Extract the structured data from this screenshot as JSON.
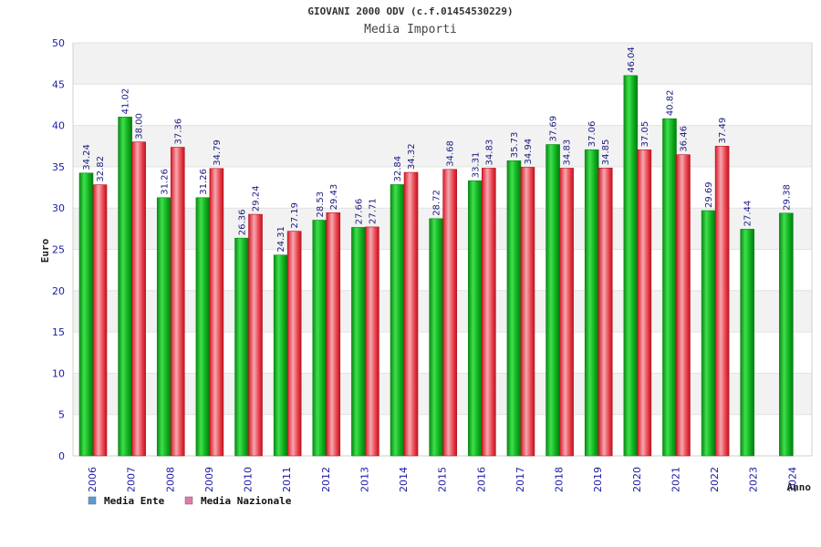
{
  "chart_data": {
    "type": "bar",
    "title": "GIOVANI 2000 ODV (c.f.01454530229)",
    "subtitle": "Media Importi",
    "xlabel": "Anno",
    "ylabel": "Euro",
    "ylim": [
      0,
      50
    ],
    "yticks": [
      0,
      5,
      10,
      15,
      20,
      25,
      30,
      35,
      40,
      45,
      50
    ],
    "grid": true,
    "legend_position": "bottom-left",
    "categories": [
      "2006",
      "2007",
      "2008",
      "2009",
      "2010",
      "2011",
      "2012",
      "2013",
      "2014",
      "2015",
      "2016",
      "2017",
      "2018",
      "2019",
      "2020",
      "2021",
      "2022",
      "2023",
      "2024"
    ],
    "series": [
      {
        "name": "Media Ente",
        "color": "#0fae1e",
        "legend_color": "#5b9bd5",
        "values": [
          34.24,
          41.02,
          31.26,
          31.26,
          26.36,
          24.31,
          28.53,
          27.66,
          32.84,
          28.72,
          33.31,
          35.73,
          37.69,
          37.06,
          46.04,
          40.82,
          29.69,
          27.44,
          29.38
        ],
        "labels": [
          "34.24",
          "41.02",
          "31.26",
          "31.26",
          "26.36",
          "24.31",
          "28.53",
          "27.66",
          "32.84",
          "28.72",
          "33.31",
          "35.73",
          "37.69",
          "37.06",
          "46.04",
          "40.82",
          "29.69",
          "27.44",
          "29.38"
        ]
      },
      {
        "name": "Media Nazionale",
        "color": "#e0202e",
        "legend_color": "#e07aa8",
        "values": [
          32.82,
          38.0,
          37.36,
          34.79,
          29.24,
          27.19,
          29.43,
          27.71,
          34.32,
          34.68,
          34.83,
          34.94,
          34.83,
          34.85,
          37.05,
          36.46,
          37.49,
          null,
          null
        ],
        "labels": [
          "32.82",
          "38.00",
          "37.36",
          "34.79",
          "29.24",
          "27.19",
          "29.43",
          "27.71",
          "34.32",
          "34.68",
          "34.83",
          "34.94",
          "34.83",
          "34.85",
          "37.05",
          "36.46",
          "37.49",
          "",
          ""
        ]
      }
    ]
  }
}
